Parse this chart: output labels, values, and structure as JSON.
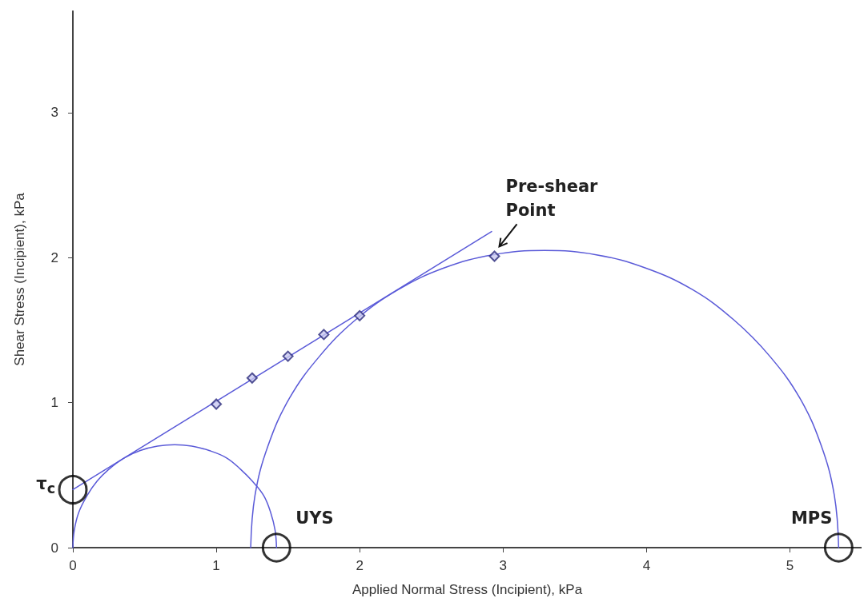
{
  "chart_data": {
    "type": "scatter",
    "xlabel": "Applied Normal Stress (Incipient), kPa",
    "ylabel": "Shear Stress (Incipient), kPa",
    "xlim": [
      0,
      5.5
    ],
    "ylim": [
      0,
      3.7
    ],
    "xticks": [
      0,
      1,
      2,
      3,
      4,
      5
    ],
    "yticks": [
      0,
      1,
      2,
      3
    ],
    "grid": false,
    "series": [
      {
        "type": "line",
        "color": "#5a5ad8",
        "marker": "none",
        "x": [
          0,
          0.01,
          0.04,
          0.1,
          0.17,
          0.25,
          0.36,
          0.47,
          0.59,
          0.71,
          0.83,
          0.95,
          1.07,
          1.17,
          1.25,
          1.33,
          1.38,
          1.41,
          1.42
        ],
        "values": [
          0,
          0.12,
          0.24,
          0.36,
          0.46,
          0.54,
          0.62,
          0.67,
          0.7,
          0.71,
          0.7,
          0.67,
          0.62,
          0.54,
          0.46,
          0.36,
          0.24,
          0.12,
          0
        ]
      },
      {
        "type": "line",
        "color": "#5a5ad8",
        "marker": "none",
        "x": [
          1.24,
          1.27,
          1.36,
          1.51,
          1.72,
          1.97,
          2.27,
          2.59,
          2.93,
          3.29,
          3.65,
          3.99,
          4.32,
          4.61,
          4.86,
          5.07,
          5.22,
          5.31,
          5.34
        ],
        "values": [
          0,
          0.36,
          0.7,
          1.03,
          1.32,
          1.57,
          1.78,
          1.93,
          2.02,
          2.05,
          2.02,
          1.93,
          1.78,
          1.57,
          1.32,
          1.03,
          0.7,
          0.36,
          0
        ]
      },
      {
        "type": "line",
        "color": "#5a5ad8",
        "marker": "none",
        "x": [
          0,
          2.92
        ],
        "values": [
          0.4,
          2.18
        ]
      },
      {
        "color": "#2a2a7a",
        "marker": "diamond",
        "x": [
          1,
          1.25,
          1.5,
          1.75,
          2,
          2.94
        ],
        "values": [
          0.99,
          1.17,
          1.32,
          1.47,
          1.6,
          2.01
        ]
      },
      {
        "color": "#000000",
        "marker": "circle",
        "x": [
          0,
          1.42,
          5.34
        ],
        "values": [
          0.4,
          0,
          0
        ]
      }
    ],
    "annotations": [
      {
        "text": "τ$_{c}$",
        "x": 0,
        "y": 0.4
      },
      {
        "text": "UYS",
        "x": 1.42,
        "y": 0
      },
      {
        "text": "MPS",
        "x": 5.34,
        "y": 0
      },
      {
        "text": "Pre-shear\nPoint",
        "x": 2.94,
        "y": 2.01
      }
    ]
  }
}
